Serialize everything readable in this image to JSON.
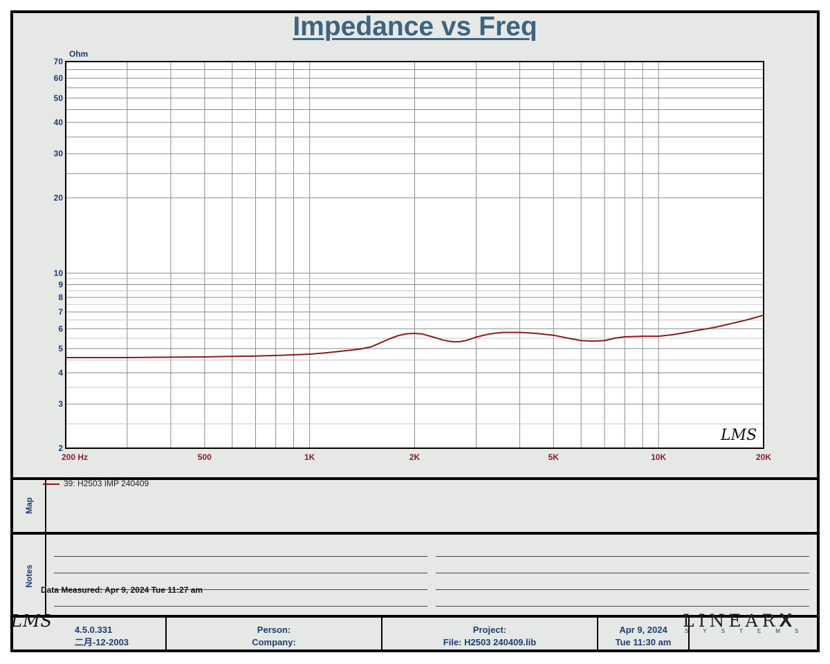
{
  "title": "Impedance vs Freq",
  "chart_data": {
    "type": "line",
    "title": "Impedance vs Freq",
    "ylabel": "Ohm",
    "xlabel": "Hz",
    "x_scale": "log",
    "y_scale": "log",
    "xlim": [
      200,
      20000
    ],
    "ylim": [
      2,
      70
    ],
    "grid": true,
    "x_tick_labels": [
      {
        "value": 200,
        "label": "200  Hz"
      },
      {
        "value": 500,
        "label": "500"
      },
      {
        "value": 1000,
        "label": "1K"
      },
      {
        "value": 2000,
        "label": "2K"
      },
      {
        "value": 5000,
        "label": "5K"
      },
      {
        "value": 10000,
        "label": "10K"
      },
      {
        "value": 20000,
        "label": "20K"
      }
    ],
    "y_tick_labels": [
      {
        "value": 70,
        "label": "70"
      },
      {
        "value": 60,
        "label": "60"
      },
      {
        "value": 50,
        "label": "50"
      },
      {
        "value": 40,
        "label": "40"
      },
      {
        "value": 30,
        "label": "30"
      },
      {
        "value": 20,
        "label": "20"
      },
      {
        "value": 10,
        "label": "10"
      },
      {
        "value": 9,
        "label": "9"
      },
      {
        "value": 8,
        "label": "8"
      },
      {
        "value": 7,
        "label": "7"
      },
      {
        "value": 6,
        "label": "6"
      },
      {
        "value": 5,
        "label": "5"
      },
      {
        "value": 4,
        "label": "4"
      },
      {
        "value": 3,
        "label": "3"
      },
      {
        "value": 2,
        "label": "2"
      }
    ],
    "series": [
      {
        "name": "39: H2503 IMP 240409",
        "color": "#8b1a1a",
        "x": [
          200,
          300,
          400,
          500,
          600,
          700,
          800,
          900,
          1000,
          1100,
          1200,
          1300,
          1400,
          1500,
          1600,
          1700,
          1800,
          1900,
          2000,
          2100,
          2200,
          2300,
          2400,
          2500,
          2600,
          2700,
          2800,
          2900,
          3000,
          3200,
          3400,
          3600,
          3800,
          4000,
          4200,
          4500,
          5000,
          5500,
          6000,
          6500,
          7000,
          7500,
          8000,
          9000,
          10000,
          11000,
          12000,
          13000,
          14000,
          15000,
          16000,
          17000,
          18000,
          19000,
          20000
        ],
        "y": [
          4.6,
          4.6,
          4.62,
          4.63,
          4.65,
          4.67,
          4.69,
          4.72,
          4.75,
          4.8,
          4.86,
          4.92,
          4.98,
          5.08,
          5.28,
          5.48,
          5.64,
          5.73,
          5.75,
          5.72,
          5.62,
          5.52,
          5.42,
          5.35,
          5.32,
          5.33,
          5.38,
          5.46,
          5.55,
          5.68,
          5.76,
          5.8,
          5.8,
          5.8,
          5.78,
          5.74,
          5.65,
          5.5,
          5.38,
          5.35,
          5.38,
          5.5,
          5.57,
          5.6,
          5.6,
          5.68,
          5.8,
          5.92,
          6.02,
          6.14,
          6.27,
          6.4,
          6.52,
          6.66,
          6.8
        ]
      }
    ]
  },
  "map": {
    "label": "Map",
    "legend_text": "39: H2503 IMP 240409"
  },
  "notes": {
    "label": "Notes",
    "measured": "Data Measured: Apr  9, 2024  Tue 11:27 am"
  },
  "footer": {
    "version": "4.5.0.331",
    "build_date": "二月-12-2003",
    "person": "Person:",
    "company": "Company:",
    "project": "Project:",
    "file": "File: H2503 240409.lib",
    "date": "Apr  9, 2024",
    "time": "Tue 11:30 am",
    "lms_logo": "LMS",
    "brand": "LINEAR",
    "brand_x": "X",
    "brand_sub": "SYSTEMS"
  },
  "plot_logo": "LMS",
  "colors": {
    "title": "#3d6481",
    "axis_label": "#1f3c72",
    "x_tick": "#8b1a2e",
    "curve": "#8b1a1a",
    "panel": "#e6e8e6"
  }
}
